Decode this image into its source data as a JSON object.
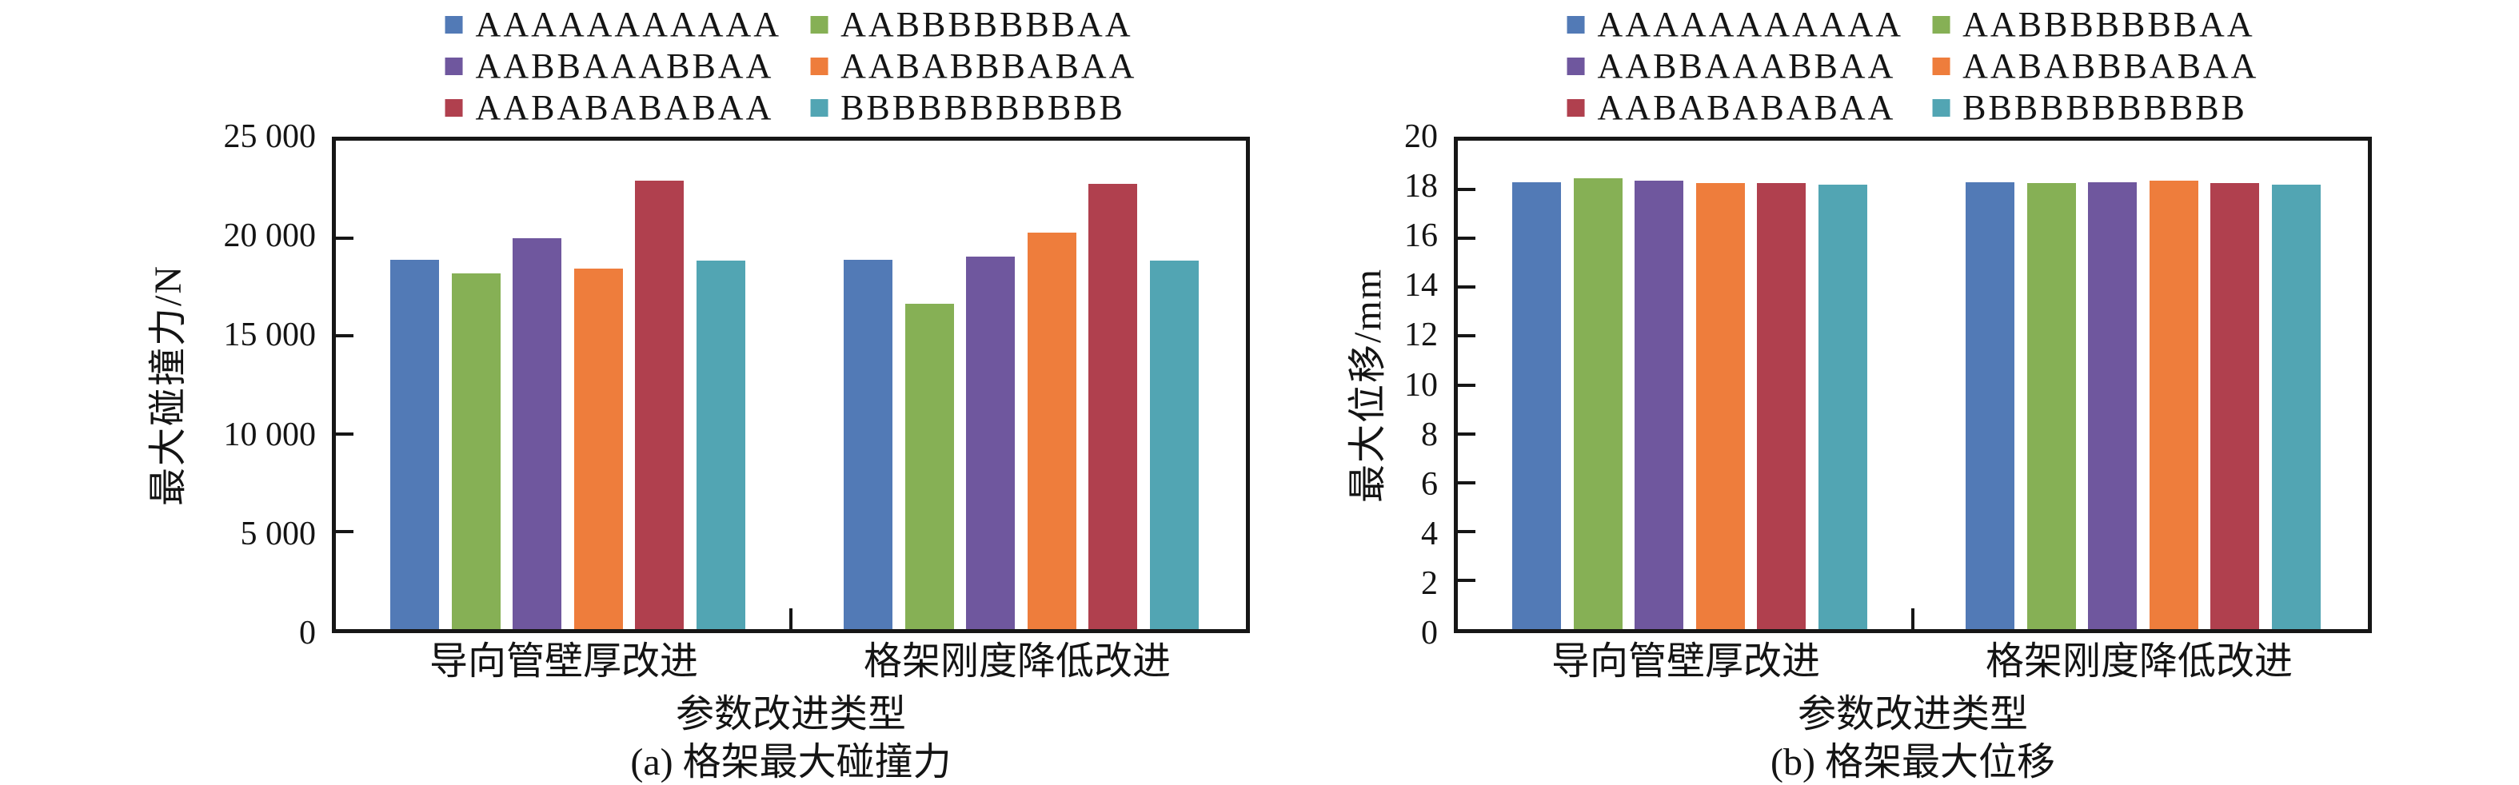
{
  "page": {
    "background": "#ffffff",
    "text_color": "#141414",
    "axis_color": "#161616"
  },
  "palette": [
    "#527ab6",
    "#86b055",
    "#6f579e",
    "#ee7d3c",
    "#b0404e",
    "#52a5b3"
  ],
  "chart_data": [
    {
      "type": "bar",
      "title": "(a) 格架最大碰撞力",
      "xlabel": "参数改进类型",
      "ylabel": "最大碰撞力/N",
      "categories": [
        "导向管壁厚改进",
        "格架刚度降低改进"
      ],
      "series": [
        {
          "name": "AAAAAAAAAAA",
          "color": "#527ab6",
          "values": [
            18900,
            18900
          ]
        },
        {
          "name": "AABBBBBBBAA",
          "color": "#86b055",
          "values": [
            18200,
            16650
          ]
        },
        {
          "name": "AABBAAABBAA",
          "color": "#6f579e",
          "values": [
            20000,
            19050
          ]
        },
        {
          "name": "AABABBBABAA",
          "color": "#ee7d3c",
          "values": [
            18450,
            20300
          ]
        },
        {
          "name": "AABABABABAA",
          "color": "#b0404e",
          "values": [
            22950,
            22800
          ]
        },
        {
          "name": "BBBBBBBBBBB",
          "color": "#52a5b3",
          "values": [
            18850,
            18850
          ]
        }
      ],
      "ylim": [
        0,
        25000
      ],
      "ytick_step": 5000,
      "ytick_labels": [
        "0",
        "5 000",
        "10 000",
        "15 000",
        "20 000",
        "25 000"
      ],
      "grid": false,
      "legend_position": "top-center"
    },
    {
      "type": "bar",
      "title": "(b) 格架最大位移",
      "xlabel": "参数改进类型",
      "ylabel": "最大位移/mm",
      "categories": [
        "导向管壁厚改进",
        "格架刚度降低改进"
      ],
      "series": [
        {
          "name": "AAAAAAAAAAA",
          "color": "#527ab6",
          "values": [
            18.3,
            18.3
          ]
        },
        {
          "name": "AABBBBBBBAA",
          "color": "#86b055",
          "values": [
            18.45,
            18.25
          ]
        },
        {
          "name": "AABBAAABBAA",
          "color": "#6f579e",
          "values": [
            18.35,
            18.3
          ]
        },
        {
          "name": "AABABBBABAA",
          "color": "#ee7d3c",
          "values": [
            18.25,
            18.35
          ]
        },
        {
          "name": "AABABABABAA",
          "color": "#b0404e",
          "values": [
            18.25,
            18.25
          ]
        },
        {
          "name": "BBBBBBBBBBB",
          "color": "#52a5b3",
          "values": [
            18.2,
            18.2
          ]
        }
      ],
      "ylim": [
        0,
        20
      ],
      "ytick_step": 2,
      "ytick_labels": [
        "0",
        "2",
        "4",
        "6",
        "8",
        "10",
        "12",
        "14",
        "16",
        "18",
        "20"
      ],
      "grid": false,
      "legend_position": "top-center"
    }
  ]
}
